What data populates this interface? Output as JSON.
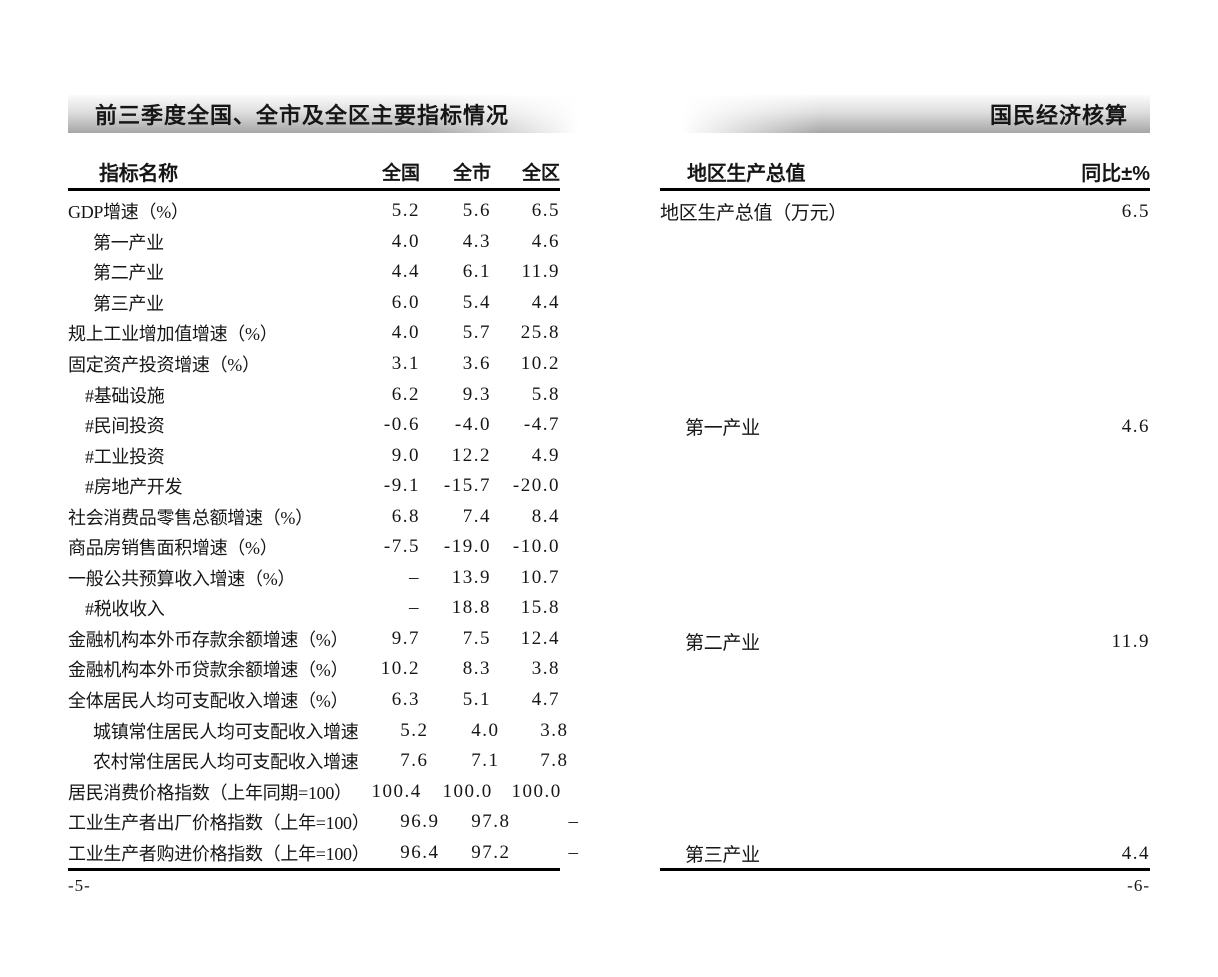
{
  "colors": {
    "text": "#161616",
    "rule": "#000000",
    "bar_light": "#fbfbfb",
    "bar_mid": "#dedede",
    "bar_dark": "#a6a6a6"
  },
  "left_page": {
    "title": "前三季度全国、全市及全区主要指标情况",
    "page_number": "-5-",
    "table": {
      "columns": [
        "指标名称",
        "全国",
        "全市",
        "全区"
      ],
      "rows": [
        {
          "label": "GDP增速（%）",
          "indent": 0,
          "values": [
            "5.2",
            "5.6",
            "6.5"
          ]
        },
        {
          "label": "第一产业",
          "indent": 2,
          "values": [
            "4.0",
            "4.3",
            "4.6"
          ]
        },
        {
          "label": "第二产业",
          "indent": 2,
          "values": [
            "4.4",
            "6.1",
            "11.9"
          ]
        },
        {
          "label": "第三产业",
          "indent": 2,
          "values": [
            "6.0",
            "5.4",
            "4.4"
          ]
        },
        {
          "label": "规上工业增加值增速（%）",
          "indent": 0,
          "values": [
            "4.0",
            "5.7",
            "25.8"
          ]
        },
        {
          "label": "固定资产投资增速（%）",
          "indent": 0,
          "values": [
            "3.1",
            "3.6",
            "10.2"
          ]
        },
        {
          "label": "#基础设施",
          "indent": 1,
          "values": [
            "6.2",
            "9.3",
            "5.8"
          ]
        },
        {
          "label": "#民间投资",
          "indent": 1,
          "values": [
            "-0.6",
            "-4.0",
            "-4.7"
          ]
        },
        {
          "label": "#工业投资",
          "indent": 1,
          "values": [
            "9.0",
            "12.2",
            "4.9"
          ]
        },
        {
          "label": "#房地产开发",
          "indent": 1,
          "values": [
            "-9.1",
            "-15.7",
            "-20.0"
          ]
        },
        {
          "label": "社会消费品零售总额增速（%）",
          "indent": 0,
          "values": [
            "6.8",
            "7.4",
            "8.4"
          ]
        },
        {
          "label": "商品房销售面积增速（%）",
          "indent": 0,
          "values": [
            "-7.5",
            "-19.0",
            "-10.0"
          ]
        },
        {
          "label": "一般公共预算收入增速（%）",
          "indent": 0,
          "values": [
            "–",
            "13.9",
            "10.7"
          ]
        },
        {
          "label": "#税收收入",
          "indent": 1,
          "values": [
            "–",
            "18.8",
            "15.8"
          ]
        },
        {
          "label": "金融机构本外币存款余额增速（%）",
          "indent": 0,
          "values": [
            "9.7",
            "7.5",
            "12.4"
          ]
        },
        {
          "label": "金融机构本外币贷款余额增速（%）",
          "indent": 0,
          "values": [
            "10.2",
            "8.3",
            "3.8"
          ]
        },
        {
          "label": "全体居民人均可支配收入增速（%）",
          "indent": 0,
          "values": [
            "6.3",
            "5.1",
            "4.7"
          ]
        },
        {
          "label": "城镇常住居民人均可支配收入增速",
          "indent": 2,
          "values": [
            "5.2",
            "4.0",
            "3.8"
          ]
        },
        {
          "label": "农村常住居民人均可支配收入增速",
          "indent": 2,
          "values": [
            "7.6",
            "7.1",
            "7.8"
          ]
        },
        {
          "label": "居民消费价格指数（上年同期=100）",
          "indent": 0,
          "values": [
            "100.4",
            "100.0",
            "100.0"
          ]
        },
        {
          "label": "工业生产者出厂价格指数（上年=100）",
          "indent": 0,
          "values": [
            "96.9",
            "97.8",
            "–"
          ]
        },
        {
          "label": "工业生产者购进价格指数（上年=100）",
          "indent": 0,
          "values": [
            "96.4",
            "97.2",
            "–"
          ]
        }
      ]
    }
  },
  "right_page": {
    "title": "国民经济核算",
    "page_number": "-6-",
    "table": {
      "columns": [
        "地区生产总值",
        "同比±%"
      ],
      "rows": [
        {
          "label": "地区生产总值（万元）",
          "indent": 0,
          "value": "6.5"
        },
        {
          "label": "第一产业",
          "indent": 2,
          "value": "4.6"
        },
        {
          "label": "第二产业",
          "indent": 2,
          "value": "11.9"
        },
        {
          "label": "第三产业",
          "indent": 2,
          "value": "4.4"
        }
      ]
    }
  }
}
